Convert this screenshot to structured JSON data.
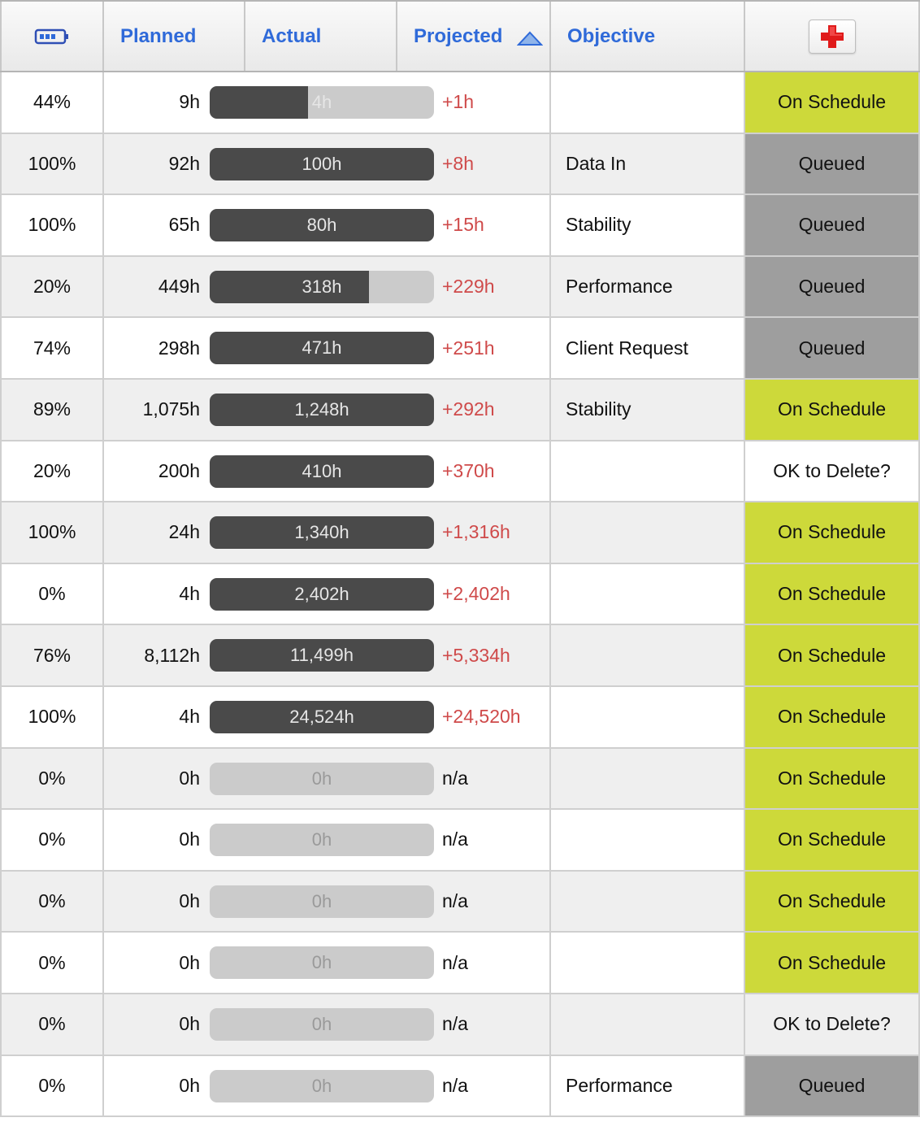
{
  "header": {
    "planned": "Planned",
    "actual": "Actual",
    "projected": "Projected",
    "objective": "Objective",
    "icon": "battery-icon",
    "sort_icon": "sort-ascending-icon",
    "add_icon": "red-plus-icon"
  },
  "colors": {
    "link_blue": "#2f6ad9",
    "on_schedule": "#cdd93a",
    "queued": "#9e9e9e",
    "delta_red": "#cf4a4a",
    "bar_dark": "#4a4a4a",
    "bar_light": "#cbcbcb"
  },
  "rows": [
    {
      "pct": "44%",
      "planned": "9h",
      "actual": "4h",
      "fill": 0.44,
      "delta": "+1h",
      "objective": "",
      "status": "On Schedule",
      "status_type": "on"
    },
    {
      "pct": "100%",
      "planned": "92h",
      "actual": "100h",
      "fill": 1.0,
      "delta": "+8h",
      "objective": "Data In",
      "status": "Queued",
      "status_type": "queued"
    },
    {
      "pct": "100%",
      "planned": "65h",
      "actual": "80h",
      "fill": 1.0,
      "delta": "+15h",
      "objective": "Stability",
      "status": "Queued",
      "status_type": "queued"
    },
    {
      "pct": "20%",
      "planned": "449h",
      "actual": "318h",
      "fill": 0.71,
      "delta": "+229h",
      "objective": "Performance",
      "status": "Queued",
      "status_type": "queued"
    },
    {
      "pct": "74%",
      "planned": "298h",
      "actual": "471h",
      "fill": 1.0,
      "delta": "+251h",
      "objective": "Client Request",
      "status": "Queued",
      "status_type": "queued"
    },
    {
      "pct": "89%",
      "planned": "1,075h",
      "actual": "1,248h",
      "fill": 1.0,
      "delta": "+292h",
      "objective": "Stability",
      "status": "On Schedule",
      "status_type": "on"
    },
    {
      "pct": "20%",
      "planned": "200h",
      "actual": "410h",
      "fill": 1.0,
      "delta": "+370h",
      "objective": "",
      "status": "OK to Delete?",
      "status_type": "ok"
    },
    {
      "pct": "100%",
      "planned": "24h",
      "actual": "1,340h",
      "fill": 1.0,
      "delta": "+1,316h",
      "objective": "",
      "status": "On Schedule",
      "status_type": "on"
    },
    {
      "pct": "0%",
      "planned": "4h",
      "actual": "2,402h",
      "fill": 1.0,
      "delta": "+2,402h",
      "objective": "",
      "status": "On Schedule",
      "status_type": "on"
    },
    {
      "pct": "76%",
      "planned": "8,112h",
      "actual": "11,499h",
      "fill": 1.0,
      "delta": "+5,334h",
      "objective": "",
      "status": "On Schedule",
      "status_type": "on"
    },
    {
      "pct": "100%",
      "planned": "4h",
      "actual": "24,524h",
      "fill": 1.0,
      "delta": "+24,520h",
      "objective": "",
      "status": "On Schedule",
      "status_type": "on"
    },
    {
      "pct": "0%",
      "planned": "0h",
      "actual": "0h",
      "fill": 0.0,
      "delta": "n/a",
      "objective": "",
      "status": "On Schedule",
      "status_type": "on"
    },
    {
      "pct": "0%",
      "planned": "0h",
      "actual": "0h",
      "fill": 0.0,
      "delta": "n/a",
      "objective": "",
      "status": "On Schedule",
      "status_type": "on"
    },
    {
      "pct": "0%",
      "planned": "0h",
      "actual": "0h",
      "fill": 0.0,
      "delta": "n/a",
      "objective": "",
      "status": "On Schedule",
      "status_type": "on"
    },
    {
      "pct": "0%",
      "planned": "0h",
      "actual": "0h",
      "fill": 0.0,
      "delta": "n/a",
      "objective": "",
      "status": "On Schedule",
      "status_type": "on"
    },
    {
      "pct": "0%",
      "planned": "0h",
      "actual": "0h",
      "fill": 0.0,
      "delta": "n/a",
      "objective": "",
      "status": "OK to Delete?",
      "status_type": "ok"
    },
    {
      "pct": "0%",
      "planned": "0h",
      "actual": "0h",
      "fill": 0.0,
      "delta": "n/a",
      "objective": "Performance",
      "status": "Queued",
      "status_type": "queued"
    }
  ]
}
